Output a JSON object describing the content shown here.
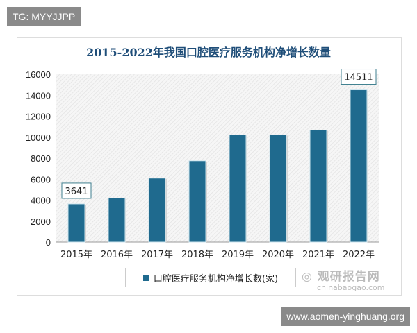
{
  "overlay": {
    "top_left": "TG: MYYJJPP",
    "bottom_right": "www.aomen-yinghuang.org"
  },
  "watermark": {
    "name": "观研报告网",
    "url": "chinabaogao.com"
  },
  "chart_data": {
    "type": "bar",
    "title": "2015-2022年我国口腔医疗服务机构净增长数量",
    "categories": [
      "2015年",
      "2016年",
      "2017年",
      "2018年",
      "2019年",
      "2020年",
      "2021年",
      "2022年"
    ],
    "series": [
      {
        "name": "口腔医疗服务机构净增长数(家)",
        "values": [
          3641,
          4200,
          6100,
          7750,
          10220,
          10220,
          10680,
          14511
        ],
        "color": "#1f6a8e"
      }
    ],
    "data_labels": [
      {
        "category": "2015年",
        "text": "3641"
      },
      {
        "category": "2022年",
        "text": "14511"
      }
    ],
    "yticks": [
      "0",
      "2000",
      "4000",
      "6000",
      "8000",
      "10000",
      "12000",
      "14000",
      "16000"
    ],
    "ylim": [
      0,
      16000
    ],
    "grid": false,
    "legend": "bottom",
    "background": "hatched-gray"
  }
}
